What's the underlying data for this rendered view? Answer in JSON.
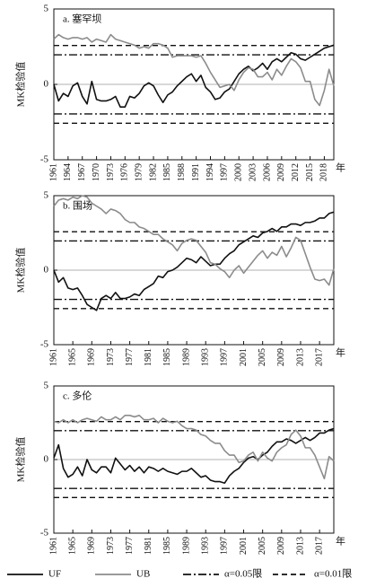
{
  "chart_data": [
    {
      "type": "line",
      "title": "a. 塞罕坝",
      "y_label": "MK检验值",
      "x_label": "年",
      "x": [
        1961,
        1962,
        1963,
        1964,
        1965,
        1966,
        1967,
        1968,
        1969,
        1970,
        1971,
        1972,
        1973,
        1974,
        1975,
        1976,
        1977,
        1978,
        1979,
        1980,
        1981,
        1982,
        1983,
        1984,
        1985,
        1986,
        1987,
        1988,
        1989,
        1990,
        1991,
        1992,
        1993,
        1994,
        1995,
        1996,
        1997,
        1998,
        1999,
        2000,
        2001,
        2002,
        2003,
        2004,
        2005,
        2006,
        2007,
        2008,
        2009,
        2010,
        2011,
        2012,
        2013,
        2014,
        2015,
        2016,
        2017,
        2018,
        2019,
        2020
      ],
      "series": [
        {
          "name": "UF",
          "color": "#111111",
          "values": [
            0,
            -1.1,
            -0.6,
            -0.8,
            -0.1,
            0.1,
            -0.8,
            -1.3,
            0.2,
            -1.0,
            -1.1,
            -1.1,
            -1.0,
            -0.8,
            -1.5,
            -1.5,
            -0.8,
            -0.9,
            -0.6,
            -0.1,
            0.1,
            -0.1,
            -0.7,
            -1.2,
            -0.7,
            -0.5,
            -0.1,
            0.2,
            0.5,
            0.7,
            0.2,
            0.6,
            -0.2,
            -0.5,
            -1.0,
            -0.9,
            -0.5,
            -0.3,
            0.2,
            0.7,
            1.0,
            1.2,
            0.9,
            1.1,
            1.4,
            1.0,
            1.5,
            1.7,
            1.5,
            1.8,
            2.1,
            2.0,
            1.7,
            1.6,
            1.8,
            2.0,
            2.2,
            2.4,
            2.5,
            2.6
          ]
        },
        {
          "name": "UB",
          "color": "#8c8c8c",
          "values": [
            3.0,
            3.3,
            3.1,
            3.0,
            3.1,
            3.1,
            3.0,
            3.1,
            2.8,
            3.0,
            2.9,
            2.8,
            3.3,
            3.0,
            2.9,
            2.8,
            2.7,
            2.6,
            2.4,
            2.5,
            2.4,
            2.7,
            2.7,
            2.6,
            2.4,
            1.8,
            1.9,
            1.9,
            1.9,
            1.9,
            1.8,
            1.9,
            1.4,
            0.8,
            0.3,
            -0.2,
            -0.1,
            0.0,
            -0.4,
            0.3,
            0.8,
            1.1,
            1.0,
            0.5,
            0.5,
            0.8,
            0.3,
            1.0,
            0.6,
            1.2,
            1.7,
            1.5,
            1.1,
            0.2,
            0.2,
            -1.0,
            -1.4,
            -0.4,
            1.0,
            -0.1
          ]
        }
      ],
      "ref_lines": [
        {
          "name": "α=0.05限",
          "values": [
            1.96,
            -1.96
          ],
          "dash": "dashdot",
          "color": "#111111"
        },
        {
          "name": "α=0.01限",
          "values": [
            2.58,
            -2.58
          ],
          "dash": "dashed",
          "color": "#111111"
        }
      ],
      "xlim": [
        1961,
        2020
      ],
      "xticks": [
        1961,
        1964,
        1967,
        1970,
        1973,
        1976,
        1979,
        1982,
        1985,
        1988,
        1991,
        1994,
        1997,
        2000,
        2003,
        2006,
        2009,
        2012,
        2015,
        2018
      ],
      "ylim": [
        -5,
        5
      ],
      "yticks": [
        -5,
        0,
        5
      ],
      "zero_line": true
    },
    {
      "type": "line",
      "title": "b. 围场",
      "y_label": "MK检验值",
      "x_label": "年",
      "x": [
        1961,
        1962,
        1963,
        1964,
        1965,
        1966,
        1967,
        1968,
        1969,
        1970,
        1971,
        1972,
        1973,
        1974,
        1975,
        1976,
        1977,
        1978,
        1979,
        1980,
        1981,
        1982,
        1983,
        1984,
        1985,
        1986,
        1987,
        1988,
        1989,
        1990,
        1991,
        1992,
        1993,
        1994,
        1995,
        1996,
        1997,
        1998,
        1999,
        2000,
        2001,
        2002,
        2003,
        2004,
        2005,
        2006,
        2007,
        2008,
        2009,
        2010,
        2011,
        2012,
        2013,
        2014,
        2015,
        2016,
        2017,
        2018,
        2019,
        2020
      ],
      "series": [
        {
          "name": "UF",
          "color": "#111111",
          "values": [
            0,
            -0.8,
            -0.5,
            -1.2,
            -1.3,
            -1.2,
            -1.7,
            -2.3,
            -2.5,
            -2.7,
            -1.9,
            -1.7,
            -1.9,
            -1.5,
            -1.9,
            -1.9,
            -1.8,
            -1.6,
            -1.7,
            -1.3,
            -1.1,
            -0.9,
            -0.4,
            -0.5,
            -0.1,
            0.0,
            0.2,
            0.5,
            0.8,
            0.7,
            0.5,
            0.9,
            0.6,
            0.3,
            0.4,
            0.4,
            0.8,
            1.1,
            1.3,
            1.7,
            1.9,
            2.1,
            2.3,
            2.2,
            2.5,
            2.6,
            2.8,
            2.6,
            2.9,
            2.9,
            3.1,
            3.1,
            3.0,
            3.2,
            3.2,
            3.3,
            3.5,
            3.5,
            3.8,
            3.9
          ]
        },
        {
          "name": "UB",
          "color": "#8c8c8c",
          "values": [
            4.3,
            4.7,
            4.8,
            4.7,
            4.9,
            4.8,
            5.0,
            4.9,
            4.5,
            4.3,
            4.1,
            3.8,
            4.1,
            4.0,
            3.8,
            3.4,
            3.2,
            3.2,
            2.9,
            2.8,
            2.6,
            2.4,
            2.4,
            2.1,
            1.9,
            1.7,
            1.3,
            1.8,
            2.0,
            2.1,
            2.0,
            1.6,
            1.2,
            0.5,
            0.4,
            0.1,
            -0.1,
            -0.5,
            0.0,
            0.3,
            -0.2,
            0.2,
            0.6,
            1.0,
            1.3,
            0.8,
            1.2,
            1.0,
            1.6,
            0.9,
            1.5,
            2.2,
            2.0,
            1.1,
            0.2,
            -0.6,
            -0.7,
            -0.6,
            -1.0,
            0.1
          ]
        }
      ],
      "ref_lines": [
        {
          "name": "α=0.05限",
          "values": [
            1.96,
            -1.96
          ],
          "dash": "dashdot",
          "color": "#111111"
        },
        {
          "name": "α=0.01限",
          "values": [
            2.58,
            -2.58
          ],
          "dash": "dashed",
          "color": "#111111"
        }
      ],
      "xlim": [
        1961,
        2020
      ],
      "xticks": [
        1961,
        1965,
        1969,
        1973,
        1977,
        1981,
        1985,
        1989,
        1993,
        1997,
        2001,
        2005,
        2009,
        2013,
        2017
      ],
      "ylim": [
        -5,
        5
      ],
      "yticks": [
        -5,
        0,
        5
      ],
      "zero_line": true
    },
    {
      "type": "line",
      "title": "c. 多伦",
      "y_label": "MK检验值",
      "x_label": "年",
      "x": [
        1961,
        1962,
        1963,
        1964,
        1965,
        1966,
        1967,
        1968,
        1969,
        1970,
        1971,
        1972,
        1973,
        1974,
        1975,
        1976,
        1977,
        1978,
        1979,
        1980,
        1981,
        1982,
        1983,
        1984,
        1985,
        1986,
        1987,
        1988,
        1989,
        1990,
        1991,
        1992,
        1993,
        1994,
        1995,
        1996,
        1997,
        1998,
        1999,
        2000,
        2001,
        2002,
        2003,
        2004,
        2005,
        2006,
        2007,
        2008,
        2009,
        2010,
        2011,
        2012,
        2013,
        2014,
        2015,
        2016,
        2017,
        2018,
        2019,
        2020
      ],
      "series": [
        {
          "name": "UF",
          "color": "#111111",
          "values": [
            0.1,
            1.0,
            -0.6,
            -1.2,
            -1.0,
            -0.5,
            -1.1,
            0.0,
            -0.7,
            -0.9,
            -0.5,
            -0.5,
            -0.9,
            0.1,
            -0.3,
            -0.7,
            -0.4,
            -0.8,
            -0.5,
            -0.9,
            -0.5,
            -0.6,
            -0.8,
            -0.6,
            -0.8,
            -0.9,
            -1.0,
            -0.8,
            -0.8,
            -0.6,
            -0.9,
            -1.2,
            -1.1,
            -1.4,
            -1.5,
            -1.5,
            -1.6,
            -1.1,
            -0.8,
            -0.6,
            -0.2,
            0.1,
            0.2,
            0.0,
            0.3,
            0.5,
            0.9,
            1.2,
            1.2,
            1.4,
            1.3,
            1.1,
            1.3,
            1.5,
            1.3,
            1.5,
            1.8,
            1.8,
            2.0,
            2.1
          ]
        },
        {
          "name": "UB",
          "color": "#8c8c8c",
          "values": [
            2.6,
            2.5,
            2.7,
            2.5,
            2.7,
            2.5,
            2.7,
            2.8,
            2.7,
            2.6,
            2.9,
            2.7,
            2.7,
            2.9,
            2.7,
            3.0,
            3.0,
            2.9,
            3.0,
            2.7,
            2.7,
            2.8,
            2.5,
            2.8,
            2.6,
            2.5,
            2.6,
            2.3,
            2.1,
            2.1,
            2.0,
            1.7,
            1.6,
            1.3,
            1.1,
            1.1,
            0.6,
            0.3,
            0.3,
            -0.2,
            -0.1,
            0.3,
            0.5,
            -0.1,
            0.5,
            0.1,
            -0.1,
            0.5,
            0.8,
            1.0,
            1.7,
            2.0,
            1.6,
            0.8,
            0.8,
            0.3,
            -0.5,
            -1.3,
            0.2,
            -0.1
          ]
        }
      ],
      "ref_lines": [
        {
          "name": "α=0.05限",
          "values": [
            1.96,
            -1.96
          ],
          "dash": "dashdot",
          "color": "#111111"
        },
        {
          "name": "α=0.01限",
          "values": [
            2.58,
            -2.58
          ],
          "dash": "dashed",
          "color": "#111111"
        }
      ],
      "xlim": [
        1961,
        2020
      ],
      "xticks": [
        1961,
        1965,
        1969,
        1973,
        1977,
        1981,
        1985,
        1989,
        1993,
        1997,
        2001,
        2005,
        2009,
        2013,
        2017
      ],
      "ylim": [
        -5,
        5
      ],
      "yticks": [
        -5,
        0,
        5
      ],
      "zero_line": true
    }
  ]
}
